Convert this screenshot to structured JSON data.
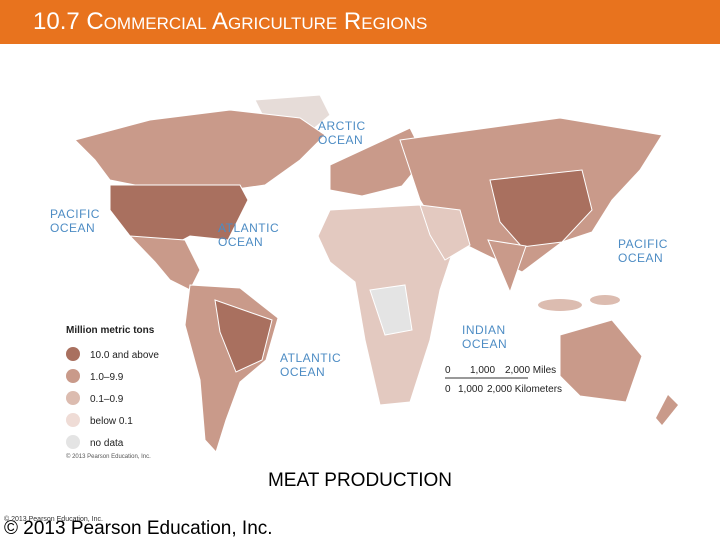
{
  "header": {
    "title": "10.7 Commercial Agriculture Regions"
  },
  "map": {
    "ocean_labels": [
      {
        "lines": [
          "ARCTIC",
          "OCEAN"
        ]
      },
      {
        "lines": [
          "PACIFIC",
          "OCEAN"
        ]
      },
      {
        "lines": [
          "ATLANTIC",
          "OCEAN"
        ]
      },
      {
        "lines": [
          "PACIFIC",
          "OCEAN"
        ]
      },
      {
        "lines": [
          "INDIAN",
          "OCEAN"
        ]
      },
      {
        "lines": [
          "ATLANTIC",
          "OCEAN"
        ]
      }
    ],
    "legend": {
      "title": "Million metric tons",
      "items": [
        "10.0 and above",
        "1.0–9.9",
        "0.1–0.9",
        "below 0.1",
        "no data"
      ]
    },
    "scale": {
      "miles": [
        "0",
        "1,000",
        "2,000 Miles"
      ],
      "kilometers": [
        "0",
        "1,000",
        "2,000 Kilometers"
      ]
    },
    "credit": "© 2013 Pearson Education, Inc."
  },
  "caption": "MEAT PRODUCTION",
  "footer": {
    "small": "© 2013 Pearson Education, Inc.",
    "large": "© 2013 Pearson Education, Inc."
  }
}
